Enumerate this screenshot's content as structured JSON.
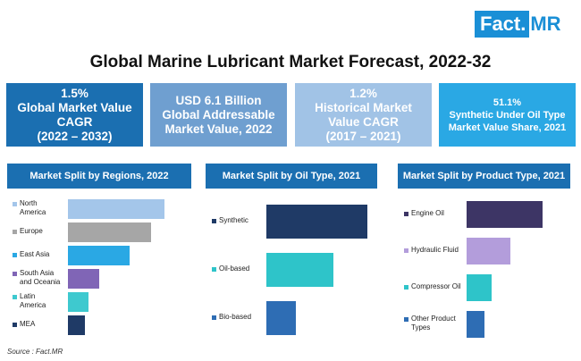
{
  "brand": {
    "logo_box": "Fact.",
    "logo_mr": "MR"
  },
  "title": "Global Marine Lubricant Market Forecast, 2022-32",
  "stats": [
    {
      "lines": [
        "1.5%",
        "Global Market Value",
        "CAGR",
        "(2022 – 2032)"
      ],
      "color": "#1b6fb1"
    },
    {
      "lines": [
        "USD 6.1 Billion",
        "Global Addressable",
        "Market Value, 2022"
      ],
      "color": "#6f9fd0"
    },
    {
      "lines": [
        "1.2%",
        "Historical Market",
        "Value CAGR",
        "(2017 – 2021)"
      ],
      "color": "#a1c3e6"
    },
    {
      "lines": [
        "51.1%",
        "Synthetic Under Oil Type",
        "Market Value Share, 2021"
      ],
      "color": "#2aa8e4"
    }
  ],
  "source": "Source : Fact.MR",
  "chart_data": [
    {
      "type": "bar",
      "orientation": "horizontal",
      "title": "Market Split by Regions, 2022",
      "categories": [
        [
          "North",
          "America"
        ],
        [
          "Europe"
        ],
        [
          "East Asia"
        ],
        [
          "South Asia",
          "and Oceania"
        ],
        [
          "Latin",
          "America"
        ],
        [
          "MEA"
        ]
      ],
      "values": [
        28,
        24,
        18,
        9,
        6,
        5
      ],
      "colors": [
        "#a4c6ea",
        "#a6a6a6",
        "#2aa8e4",
        "#8065b6",
        "#3ec9cf",
        "#1f3a66"
      ]
    },
    {
      "type": "bar",
      "orientation": "horizontal",
      "title": "Market Split by Oil Type, 2021",
      "categories": [
        [
          "Synthetic"
        ],
        [
          "Oil-based"
        ],
        [
          "Bio-based"
        ]
      ],
      "values": [
        51.1,
        34,
        15
      ],
      "colors": [
        "#1f3a66",
        "#2ec4c9",
        "#2e6db4"
      ]
    },
    {
      "type": "bar",
      "orientation": "horizontal",
      "title": "Market Split by Product Type, 2021",
      "categories": [
        [
          "Engine Oil"
        ],
        [
          "Hydraulic Fluid"
        ],
        [
          "Compressor Oil"
        ],
        [
          "Other Product",
          "Types"
        ]
      ],
      "values": [
        42,
        24,
        14,
        10
      ],
      "colors": [
        "#3d3565",
        "#b39ddb",
        "#2ec4c9",
        "#2e6db4"
      ]
    }
  ]
}
